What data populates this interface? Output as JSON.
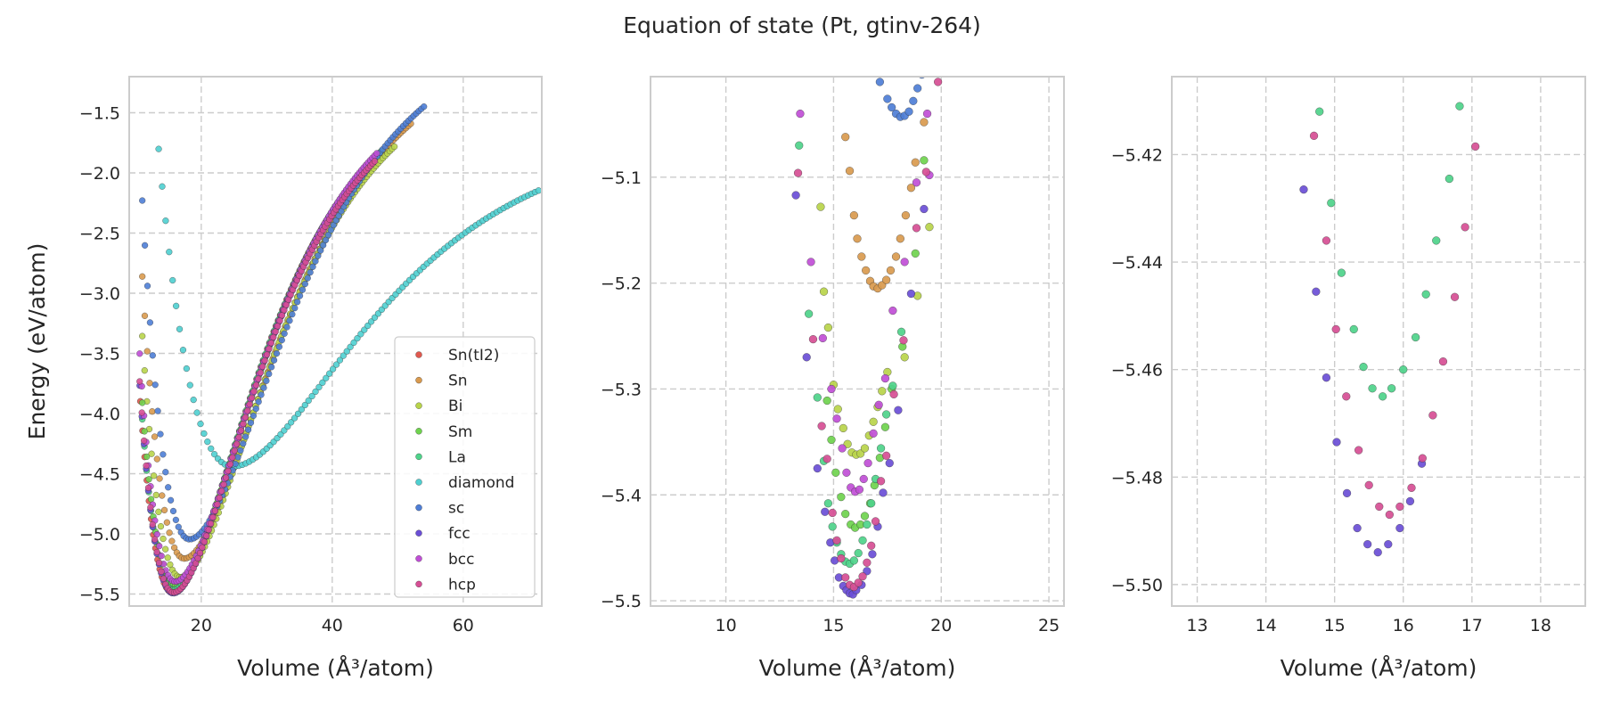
{
  "figure": {
    "suptitle": "Equation of state (Pt, gtinv-264)"
  },
  "colors": {
    "Sn(tI2)": "#e0584e",
    "Sn": "#d99a4e",
    "Bi": "#b8d44a",
    "Sm": "#6fd34e",
    "La": "#4ed38a",
    "diamond": "#4ecfd0",
    "sc": "#4e7ed6",
    "fcc": "#6a4ed6",
    "bcc": "#c04ed6",
    "hcp": "#d64e94"
  },
  "chart_data": [
    {
      "type": "scatter",
      "xlabel": "Volume (Å³/atom)",
      "ylabel": "Energy (eV/atom)",
      "xlim": [
        9,
        72
      ],
      "ylim": [
        -5.6,
        -1.2
      ],
      "xticks": [
        20,
        40,
        60
      ],
      "yticks": [
        -1.5,
        -2.0,
        -2.5,
        -3.0,
        -3.5,
        -4.0,
        -4.5,
        -5.0,
        -5.5
      ],
      "grid": true,
      "legend_position": "lower-right",
      "legend": [
        "Sn(tI2)",
        "Sn",
        "Bi",
        "Sm",
        "La",
        "diamond",
        "sc",
        "fcc",
        "bcc",
        "hcp"
      ],
      "series_eos": [
        {
          "name": "Sn(tI2)",
          "v0": 15.6,
          "e0": -5.489,
          "a": 0.03,
          "vmin": 10.7,
          "vmax": 46.5,
          "n": 110
        },
        {
          "name": "Sn",
          "v0": 17.4,
          "e0": -5.205,
          "a": 0.03,
          "vmin": 11.0,
          "vmax": 52.0,
          "n": 110
        },
        {
          "name": "Bi",
          "v0": 16.8,
          "e0": -5.36,
          "a": 0.03,
          "vmin": 11.0,
          "vmax": 49.5,
          "n": 110
        },
        {
          "name": "Sm",
          "v0": 15.9,
          "e0": -5.43,
          "a": 0.03,
          "vmin": 11.0,
          "vmax": 47.5,
          "n": 110
        },
        {
          "name": "La",
          "v0": 15.7,
          "e0": -5.465,
          "a": 0.03,
          "vmin": 11.0,
          "vmax": 47.0,
          "n": 110
        },
        {
          "name": "diamond",
          "v0": 24.8,
          "e0": -4.44,
          "a": 0.0095,
          "vmin": 13.5,
          "vmax": 71.5,
          "n": 110
        },
        {
          "name": "sc",
          "v0": 18.2,
          "e0": -5.045,
          "a": 0.025,
          "vmin": 11.0,
          "vmax": 54.0,
          "n": 110
        },
        {
          "name": "fcc",
          "v0": 15.7,
          "e0": -5.494,
          "a": 0.03,
          "vmin": 10.6,
          "vmax": 46.3,
          "n": 110
        },
        {
          "name": "bcc",
          "v0": 16.0,
          "e0": -5.397,
          "a": 0.03,
          "vmin": 10.6,
          "vmax": 46.8,
          "n": 110
        },
        {
          "name": "hcp",
          "v0": 15.75,
          "e0": -5.487,
          "a": 0.03,
          "vmin": 10.6,
          "vmax": 46.5,
          "n": 110
        }
      ]
    },
    {
      "type": "scatter",
      "xlabel": "Volume (Å³/atom)",
      "ylabel": "",
      "xlim": [
        6.5,
        25.7
      ],
      "ylim": [
        -5.505,
        -5.005
      ],
      "xticks": [
        10,
        15,
        20,
        25
      ],
      "yticks": [
        -5.1,
        -5.2,
        -5.3,
        -5.4,
        -5.5
      ],
      "grid": true,
      "series": [
        {
          "name": "Sn",
          "points": [
            [
              15.55,
              -5.062
            ],
            [
              15.75,
              -5.094
            ],
            [
              15.95,
              -5.136
            ],
            [
              16.1,
              -5.158
            ],
            [
              16.3,
              -5.175
            ],
            [
              16.5,
              -5.188
            ],
            [
              16.7,
              -5.198
            ],
            [
              16.85,
              -5.203
            ],
            [
              17.05,
              -5.205
            ],
            [
              17.25,
              -5.202
            ],
            [
              17.45,
              -5.197
            ],
            [
              17.65,
              -5.188
            ],
            [
              17.9,
              -5.175
            ],
            [
              18.1,
              -5.158
            ],
            [
              18.35,
              -5.136
            ],
            [
              18.6,
              -5.11
            ],
            [
              18.8,
              -5.086
            ],
            [
              19.2,
              -5.048
            ]
          ]
        },
        {
          "name": "Bi",
          "points": [
            [
              14.4,
              -5.128
            ],
            [
              14.55,
              -5.208
            ],
            [
              14.75,
              -5.242
            ],
            [
              15.0,
              -5.296
            ],
            [
              15.2,
              -5.319
            ],
            [
              15.45,
              -5.337
            ],
            [
              15.65,
              -5.352
            ],
            [
              15.85,
              -5.36
            ],
            [
              16.05,
              -5.362
            ],
            [
              16.25,
              -5.361
            ],
            [
              16.45,
              -5.356
            ],
            [
              16.65,
              -5.344
            ],
            [
              16.85,
              -5.331
            ],
            [
              17.05,
              -5.317
            ],
            [
              17.25,
              -5.302
            ],
            [
              17.5,
              -5.284
            ],
            [
              18.3,
              -5.27
            ],
            [
              18.9,
              -5.212
            ],
            [
              19.45,
              -5.147
            ]
          ]
        },
        {
          "name": "Sm",
          "points": [
            [
              14.7,
              -5.311
            ],
            [
              14.9,
              -5.348
            ],
            [
              15.1,
              -5.379
            ],
            [
              15.35,
              -5.402
            ],
            [
              15.55,
              -5.418
            ],
            [
              15.8,
              -5.428
            ],
            [
              16.0,
              -5.431
            ],
            [
              16.25,
              -5.428
            ],
            [
              16.45,
              -5.42
            ],
            [
              16.7,
              -5.408
            ],
            [
              16.9,
              -5.391
            ],
            [
              17.15,
              -5.365
            ],
            [
              17.4,
              -5.336
            ],
            [
              17.7,
              -5.3
            ],
            [
              18.2,
              -5.26
            ],
            [
              18.8,
              -5.172
            ],
            [
              19.2,
              -5.084
            ]
          ]
        },
        {
          "name": "La",
          "points": [
            [
              13.4,
              -5.07
            ],
            [
              13.85,
              -5.229
            ],
            [
              14.25,
              -5.308
            ],
            [
              14.55,
              -5.368
            ],
            [
              14.75,
              -5.408
            ],
            [
              14.95,
              -5.43
            ],
            [
              15.15,
              -5.445
            ],
            [
              15.35,
              -5.456
            ],
            [
              15.55,
              -5.463
            ],
            [
              15.75,
              -5.465
            ],
            [
              15.95,
              -5.462
            ],
            [
              16.15,
              -5.455
            ],
            [
              16.35,
              -5.443
            ],
            [
              16.55,
              -5.428
            ],
            [
              16.75,
              -5.408
            ],
            [
              16.95,
              -5.385
            ],
            [
              17.2,
              -5.356
            ],
            [
              17.45,
              -5.324
            ],
            [
              17.75,
              -5.297
            ],
            [
              18.15,
              -5.246
            ]
          ]
        },
        {
          "name": "sc",
          "points": [
            [
              17.15,
              -5.01
            ],
            [
              17.5,
              -5.026
            ],
            [
              17.7,
              -5.034
            ],
            [
              17.9,
              -5.04
            ],
            [
              18.1,
              -5.043
            ],
            [
              18.3,
              -5.042
            ],
            [
              18.5,
              -5.038
            ],
            [
              18.7,
              -5.028
            ],
            [
              18.9,
              -5.016
            ],
            [
              19.1,
              -5.003
            ]
          ]
        },
        {
          "name": "fcc",
          "points": [
            [
              13.25,
              -5.117
            ],
            [
              13.75,
              -5.27
            ],
            [
              14.25,
              -5.375
            ],
            [
              14.6,
              -5.416
            ],
            [
              14.85,
              -5.445
            ],
            [
              15.05,
              -5.462
            ],
            [
              15.25,
              -5.478
            ],
            [
              15.45,
              -5.486
            ],
            [
              15.6,
              -5.49
            ],
            [
              15.75,
              -5.493
            ],
            [
              15.9,
              -5.494
            ],
            [
              16.05,
              -5.49
            ],
            [
              16.3,
              -5.485
            ],
            [
              16.55,
              -5.472
            ],
            [
              16.8,
              -5.456
            ],
            [
              17.05,
              -5.43
            ],
            [
              17.3,
              -5.398
            ],
            [
              17.6,
              -5.37
            ],
            [
              18.0,
              -5.32
            ],
            [
              18.6,
              -5.21
            ],
            [
              19.2,
              -5.13
            ]
          ]
        },
        {
          "name": "bcc",
          "points": [
            [
              13.45,
              -5.04
            ],
            [
              13.95,
              -5.18
            ],
            [
              14.5,
              -5.252
            ],
            [
              14.9,
              -5.3
            ],
            [
              15.15,
              -5.328
            ],
            [
              15.4,
              -5.356
            ],
            [
              15.6,
              -5.379
            ],
            [
              15.8,
              -5.393
            ],
            [
              16.0,
              -5.397
            ],
            [
              16.2,
              -5.395
            ],
            [
              16.4,
              -5.385
            ],
            [
              16.6,
              -5.37
            ],
            [
              16.85,
              -5.342
            ],
            [
              17.1,
              -5.315
            ],
            [
              17.4,
              -5.29
            ],
            [
              17.75,
              -5.226
            ],
            [
              18.3,
              -5.18
            ],
            [
              18.85,
              -5.105
            ],
            [
              19.35,
              -5.04
            ],
            [
              19.45,
              -5.098
            ]
          ]
        },
        {
          "name": "hcp",
          "points": [
            [
              13.35,
              -5.096
            ],
            [
              14.05,
              -5.253
            ],
            [
              14.45,
              -5.335
            ],
            [
              14.7,
              -5.366
            ],
            [
              14.95,
              -5.417
            ],
            [
              15.15,
              -5.443
            ],
            [
              15.35,
              -5.46
            ],
            [
              15.55,
              -5.478
            ],
            [
              15.75,
              -5.485
            ],
            [
              15.95,
              -5.487
            ],
            [
              16.15,
              -5.483
            ],
            [
              16.35,
              -5.477
            ],
            [
              16.55,
              -5.464
            ],
            [
              16.75,
              -5.448
            ],
            [
              16.95,
              -5.425
            ],
            [
              17.2,
              -5.387
            ],
            [
              17.45,
              -5.363
            ],
            [
              17.8,
              -5.305
            ],
            [
              18.25,
              -5.254
            ],
            [
              18.85,
              -5.148
            ],
            [
              19.3,
              -5.095
            ],
            [
              19.85,
              -5.01
            ]
          ]
        }
      ]
    },
    {
      "type": "scatter",
      "xlabel": "Volume (Å³/atom)",
      "ylabel": "",
      "xlim": [
        12.63,
        18.65
      ],
      "ylim": [
        -5.504,
        -5.4055
      ],
      "xticks": [
        13,
        14,
        15,
        16,
        17,
        18
      ],
      "yticks": [
        -5.42,
        -5.44,
        -5.46,
        -5.48,
        -5.5
      ],
      "grid": true,
      "series": [
        {
          "name": "La",
          "points": [
            [
              14.78,
              -5.412
            ],
            [
              14.95,
              -5.429
            ],
            [
              15.1,
              -5.442
            ],
            [
              15.28,
              -5.4525
            ],
            [
              15.42,
              -5.4595
            ],
            [
              15.55,
              -5.4635
            ],
            [
              15.7,
              -5.465
            ],
            [
              15.83,
              -5.4635
            ],
            [
              16.0,
              -5.46
            ],
            [
              16.18,
              -5.454
            ],
            [
              16.33,
              -5.446
            ],
            [
              16.48,
              -5.436
            ],
            [
              16.67,
              -5.4245
            ],
            [
              16.82,
              -5.411
            ]
          ]
        },
        {
          "name": "fcc",
          "points": [
            [
              14.55,
              -5.4265
            ],
            [
              14.73,
              -5.4455
            ],
            [
              14.88,
              -5.4615
            ],
            [
              15.03,
              -5.4735
            ],
            [
              15.18,
              -5.483
            ],
            [
              15.33,
              -5.4895
            ],
            [
              15.48,
              -5.4925
            ],
            [
              15.63,
              -5.494
            ],
            [
              15.78,
              -5.4925
            ],
            [
              15.95,
              -5.4895
            ],
            [
              16.1,
              -5.4845
            ],
            [
              16.27,
              -5.4775
            ]
          ]
        },
        {
          "name": "hcp",
          "points": [
            [
              14.7,
              -5.4165
            ],
            [
              14.88,
              -5.436
            ],
            [
              15.02,
              -5.4525
            ],
            [
              15.17,
              -5.465
            ],
            [
              15.35,
              -5.475
            ],
            [
              15.5,
              -5.4815
            ],
            [
              15.65,
              -5.4855
            ],
            [
              15.8,
              -5.487
            ],
            [
              15.95,
              -5.4855
            ],
            [
              16.12,
              -5.482
            ],
            [
              16.28,
              -5.4765
            ],
            [
              16.43,
              -5.4685
            ],
            [
              16.58,
              -5.4585
            ],
            [
              16.75,
              -5.4465
            ],
            [
              16.9,
              -5.4335
            ],
            [
              17.05,
              -5.4185
            ]
          ]
        }
      ]
    }
  ]
}
